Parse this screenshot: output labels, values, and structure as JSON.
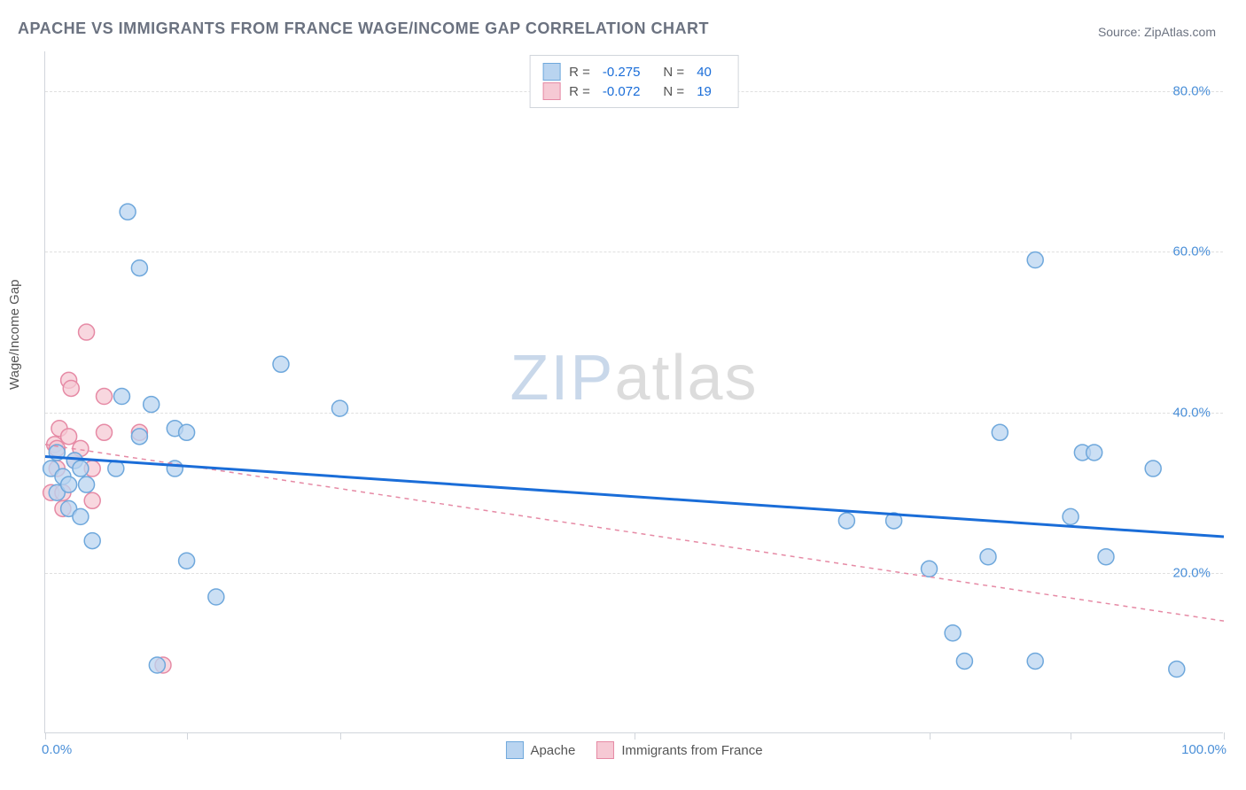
{
  "title": "APACHE VS IMMIGRANTS FROM FRANCE WAGE/INCOME GAP CORRELATION CHART",
  "source": "Source: ZipAtlas.com",
  "ylabel": "Wage/Income Gap",
  "watermark": {
    "part1": "ZIP",
    "part2": "atlas"
  },
  "chart": {
    "type": "scatter",
    "xlim": [
      0,
      100
    ],
    "ylim": [
      0,
      85
    ],
    "yticks": [
      20,
      40,
      60,
      80
    ],
    "ytick_labels": [
      "20.0%",
      "40.0%",
      "60.0%",
      "80.0%"
    ],
    "xtick_positions": [
      0,
      12,
      25,
      50,
      75,
      87,
      100
    ],
    "xlim_labels": {
      "min": "0.0%",
      "max": "100.0%"
    },
    "grid_color": "#e0e0e0",
    "background_color": "#ffffff",
    "series": [
      {
        "name": "Apache",
        "color_fill": "#b9d4f0",
        "color_stroke": "#6fa8dc",
        "marker_r": 9,
        "R": "-0.275",
        "N": "40",
        "trend": {
          "color": "#1a6dd8",
          "width": 3,
          "dash": "",
          "x1": 0,
          "y1": 34.5,
          "x2": 100,
          "y2": 24.5
        },
        "points": [
          [
            0.5,
            33
          ],
          [
            1,
            30
          ],
          [
            1,
            35
          ],
          [
            1.5,
            32
          ],
          [
            2,
            31
          ],
          [
            2,
            28
          ],
          [
            2.5,
            34
          ],
          [
            3,
            27
          ],
          [
            3,
            33
          ],
          [
            3.5,
            31
          ],
          [
            4,
            24
          ],
          [
            6,
            33
          ],
          [
            6.5,
            42
          ],
          [
            7,
            65
          ],
          [
            8,
            58
          ],
          [
            8,
            37
          ],
          [
            9,
            41
          ],
          [
            9.5,
            8.5
          ],
          [
            11,
            38
          ],
          [
            11,
            33
          ],
          [
            12,
            21.5
          ],
          [
            12,
            37.5
          ],
          [
            14.5,
            17
          ],
          [
            20,
            46
          ],
          [
            25,
            40.5
          ],
          [
            68,
            26.5
          ],
          [
            72,
            26.5
          ],
          [
            75,
            20.5
          ],
          [
            77,
            12.5
          ],
          [
            78,
            9
          ],
          [
            80,
            22
          ],
          [
            81,
            37.5
          ],
          [
            84,
            9
          ],
          [
            84,
            59
          ],
          [
            87,
            27
          ],
          [
            88,
            35
          ],
          [
            89,
            35
          ],
          [
            90,
            22
          ],
          [
            94,
            33
          ],
          [
            96,
            8
          ]
        ]
      },
      {
        "name": "Immigrants from France",
        "color_fill": "#f6c9d4",
        "color_stroke": "#e68aa5",
        "marker_r": 9,
        "R": "-0.072",
        "N": "19",
        "trend": {
          "color": "#e68aa5",
          "width": 1.5,
          "dash": "5,5",
          "x1": 0,
          "y1": 36,
          "x2": 100,
          "y2": 14
        },
        "points": [
          [
            0.5,
            30
          ],
          [
            0.8,
            36
          ],
          [
            1,
            33
          ],
          [
            1,
            35.5
          ],
          [
            1.2,
            38
          ],
          [
            1.5,
            28
          ],
          [
            1.5,
            30
          ],
          [
            2,
            44
          ],
          [
            2,
            37
          ],
          [
            2.2,
            43
          ],
          [
            2.5,
            34
          ],
          [
            3,
            35.5
          ],
          [
            3.5,
            50
          ],
          [
            4,
            29
          ],
          [
            4,
            33
          ],
          [
            5,
            37.5
          ],
          [
            5,
            42
          ],
          [
            8,
            37.5
          ],
          [
            10,
            8.5
          ]
        ]
      }
    ],
    "legend_top_r_label": "R =",
    "legend_top_n_label": "N ="
  }
}
